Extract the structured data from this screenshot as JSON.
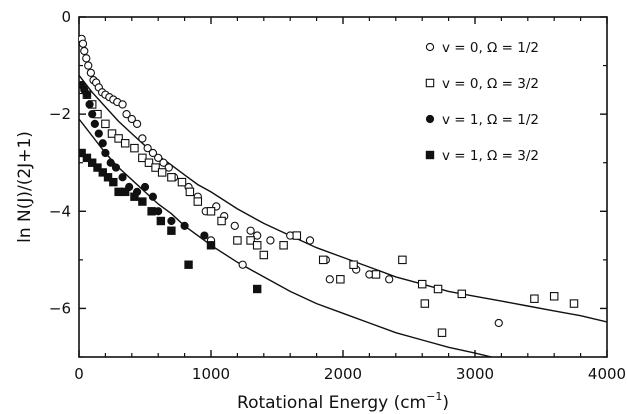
{
  "chart_data": {
    "type": "scatter",
    "title": "",
    "xlabel": "Rotational Energy (cm",
    "xlabel_sup": "−1",
    "xlabel_close": ")",
    "ylabel": "ln N(J)/(2J+1)",
    "xlim": [
      0,
      4000
    ],
    "ylim": [
      -7,
      0
    ],
    "xticks": [
      0,
      1000,
      2000,
      3000,
      4000
    ],
    "yticks": [
      0,
      -2,
      -4,
      -6
    ],
    "grid": false,
    "legend_position": "top-right",
    "series": [
      {
        "name": "v = 0, Ω = 1/2",
        "marker": "open-circle",
        "points": [
          [
            20,
            -0.45
          ],
          [
            30,
            -0.55
          ],
          [
            40,
            -0.7
          ],
          [
            55,
            -0.85
          ],
          [
            70,
            -1.0
          ],
          [
            90,
            -1.15
          ],
          [
            110,
            -1.3
          ],
          [
            130,
            -1.35
          ],
          [
            150,
            -1.45
          ],
          [
            175,
            -1.55
          ],
          [
            200,
            -1.6
          ],
          [
            230,
            -1.65
          ],
          [
            260,
            -1.7
          ],
          [
            290,
            -1.75
          ],
          [
            330,
            -1.8
          ],
          [
            360,
            -2.0
          ],
          [
            400,
            -2.1
          ],
          [
            440,
            -2.2
          ],
          [
            480,
            -2.5
          ],
          [
            520,
            -2.7
          ],
          [
            560,
            -2.8
          ],
          [
            600,
            -2.9
          ],
          [
            640,
            -3.0
          ],
          [
            680,
            -3.1
          ],
          [
            720,
            -3.3
          ],
          [
            780,
            -3.4
          ],
          [
            830,
            -3.5
          ],
          [
            900,
            -3.7
          ],
          [
            960,
            -4.0
          ],
          [
            1000,
            -4.6
          ],
          [
            1040,
            -3.9
          ],
          [
            1100,
            -4.1
          ],
          [
            1180,
            -4.3
          ],
          [
            1240,
            -5.1
          ],
          [
            1300,
            -4.4
          ],
          [
            1350,
            -4.5
          ],
          [
            1450,
            -4.6
          ],
          [
            1600,
            -4.5
          ],
          [
            1750,
            -4.6
          ],
          [
            1870,
            -5.0
          ],
          [
            1900,
            -5.4
          ],
          [
            2100,
            -5.2
          ],
          [
            2200,
            -5.3
          ],
          [
            2350,
            -5.4
          ],
          [
            3180,
            -6.3
          ]
        ]
      },
      {
        "name": "v = 0, Ω = 3/2",
        "marker": "open-square",
        "points": [
          [
            30,
            -1.5
          ],
          [
            60,
            -1.6
          ],
          [
            100,
            -1.8
          ],
          [
            140,
            -2.0
          ],
          [
            200,
            -2.2
          ],
          [
            250,
            -2.4
          ],
          [
            300,
            -2.5
          ],
          [
            350,
            -2.6
          ],
          [
            420,
            -2.7
          ],
          [
            480,
            -2.9
          ],
          [
            530,
            -3.0
          ],
          [
            580,
            -3.1
          ],
          [
            630,
            -3.2
          ],
          [
            700,
            -3.3
          ],
          [
            780,
            -3.4
          ],
          [
            840,
            -3.6
          ],
          [
            900,
            -3.8
          ],
          [
            1000,
            -4.0
          ],
          [
            1080,
            -4.2
          ],
          [
            1200,
            -4.6
          ],
          [
            1300,
            -4.6
          ],
          [
            1350,
            -4.7
          ],
          [
            1400,
            -4.9
          ],
          [
            1550,
            -4.7
          ],
          [
            1650,
            -4.5
          ],
          [
            1850,
            -5.0
          ],
          [
            1980,
            -5.4
          ],
          [
            2080,
            -5.1
          ],
          [
            2250,
            -5.3
          ],
          [
            2450,
            -5.0
          ],
          [
            2600,
            -5.5
          ],
          [
            2620,
            -5.9
          ],
          [
            2720,
            -5.6
          ],
          [
            2750,
            -6.5
          ],
          [
            2900,
            -5.7
          ],
          [
            3450,
            -5.8
          ],
          [
            3600,
            -5.75
          ],
          [
            3750,
            -5.9
          ]
        ]
      },
      {
        "name": "v = 1, Ω = 1/2",
        "marker": "filled-circle",
        "points": [
          [
            20,
            -1.4
          ],
          [
            40,
            -1.5
          ],
          [
            60,
            -1.6
          ],
          [
            80,
            -1.8
          ],
          [
            100,
            -2.0
          ],
          [
            120,
            -2.2
          ],
          [
            150,
            -2.4
          ],
          [
            180,
            -2.6
          ],
          [
            200,
            -2.8
          ],
          [
            240,
            -3.0
          ],
          [
            280,
            -3.1
          ],
          [
            330,
            -3.3
          ],
          [
            380,
            -3.5
          ],
          [
            440,
            -3.6
          ],
          [
            500,
            -3.5
          ],
          [
            560,
            -3.7
          ],
          [
            600,
            -4.0
          ],
          [
            700,
            -4.2
          ],
          [
            800,
            -4.3
          ],
          [
            950,
            -4.5
          ]
        ]
      },
      {
        "name": "v = 1, Ω = 3/2",
        "marker": "filled-square",
        "points": [
          [
            20,
            -2.8
          ],
          [
            60,
            -2.9
          ],
          [
            100,
            -3.0
          ],
          [
            140,
            -3.1
          ],
          [
            180,
            -3.2
          ],
          [
            220,
            -3.3
          ],
          [
            260,
            -3.4
          ],
          [
            300,
            -3.6
          ],
          [
            350,
            -3.6
          ],
          [
            420,
            -3.7
          ],
          [
            480,
            -3.8
          ],
          [
            550,
            -4.0
          ],
          [
            620,
            -4.2
          ],
          [
            700,
            -4.4
          ],
          [
            830,
            -5.1
          ],
          [
            1000,
            -4.7
          ],
          [
            1350,
            -5.6
          ]
        ]
      }
    ],
    "fit_curves": [
      {
        "points": [
          [
            0,
            -1.2
          ],
          [
            100,
            -1.55
          ],
          [
            200,
            -1.85
          ],
          [
            300,
            -2.15
          ],
          [
            400,
            -2.4
          ],
          [
            500,
            -2.65
          ],
          [
            600,
            -2.85
          ],
          [
            700,
            -3.05
          ],
          [
            800,
            -3.25
          ],
          [
            900,
            -3.45
          ],
          [
            1000,
            -3.6
          ],
          [
            1200,
            -3.95
          ],
          [
            1400,
            -4.25
          ],
          [
            1600,
            -4.5
          ],
          [
            1800,
            -4.75
          ],
          [
            2000,
            -4.95
          ],
          [
            2200,
            -5.15
          ],
          [
            2400,
            -5.35
          ],
          [
            2600,
            -5.5
          ],
          [
            2800,
            -5.65
          ],
          [
            3000,
            -5.75
          ],
          [
            3200,
            -5.85
          ],
          [
            3400,
            -5.95
          ],
          [
            3600,
            -6.05
          ],
          [
            3800,
            -6.15
          ],
          [
            4000,
            -6.28
          ]
        ]
      },
      {
        "points": [
          [
            0,
            -2.1
          ],
          [
            100,
            -2.45
          ],
          [
            200,
            -2.8
          ],
          [
            300,
            -3.1
          ],
          [
            400,
            -3.35
          ],
          [
            500,
            -3.6
          ],
          [
            600,
            -3.85
          ],
          [
            700,
            -4.05
          ],
          [
            800,
            -4.3
          ],
          [
            900,
            -4.5
          ],
          [
            1000,
            -4.7
          ],
          [
            1200,
            -5.05
          ],
          [
            1400,
            -5.35
          ],
          [
            1600,
            -5.65
          ],
          [
            1800,
            -5.9
          ],
          [
            2000,
            -6.1
          ],
          [
            2200,
            -6.3
          ],
          [
            2400,
            -6.5
          ],
          [
            2600,
            -6.65
          ],
          [
            2800,
            -6.8
          ],
          [
            3000,
            -6.92
          ],
          [
            3200,
            -7.05
          ]
        ]
      }
    ]
  }
}
